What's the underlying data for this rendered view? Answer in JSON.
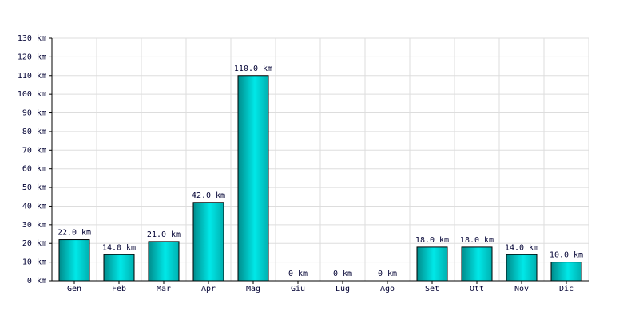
{
  "chart_data": {
    "type": "bar",
    "categories": [
      "Gen",
      "Feb",
      "Mar",
      "Apr",
      "Mag",
      "Giu",
      "Lug",
      "Ago",
      "Set",
      "Ott",
      "Nov",
      "Dic"
    ],
    "values": [
      22,
      14,
      21,
      42,
      110,
      0,
      0,
      0,
      18,
      18,
      14,
      10
    ],
    "value_labels": [
      "22.0 km",
      "14.0 km",
      "21.0 km",
      "42.0 km",
      "110.0 km",
      "0 km",
      "0 km",
      "0 km",
      "18.0 km",
      "18.0 km",
      "14.0 km",
      "10.0 km"
    ],
    "color": "#00e8e8",
    "ylim": [
      0,
      130
    ],
    "yticks": [
      {
        "value": 0,
        "label": "0 km"
      },
      {
        "value": 10,
        "label": "10 km"
      },
      {
        "value": 20,
        "label": "20 km"
      },
      {
        "value": 30,
        "label": "30 km"
      },
      {
        "value": 40,
        "label": "40 km"
      },
      {
        "value": 50,
        "label": "50 km"
      },
      {
        "value": 60,
        "label": "60 km"
      },
      {
        "value": 70,
        "label": "70 km"
      },
      {
        "value": 80,
        "label": "80 km"
      },
      {
        "value": 90,
        "label": "90 km"
      },
      {
        "value": 100,
        "label": "100 km"
      },
      {
        "value": 110,
        "label": "110 km"
      },
      {
        "value": 120,
        "label": "120 km"
      },
      {
        "value": 130,
        "label": "130 km"
      }
    ],
    "grid": true
  }
}
